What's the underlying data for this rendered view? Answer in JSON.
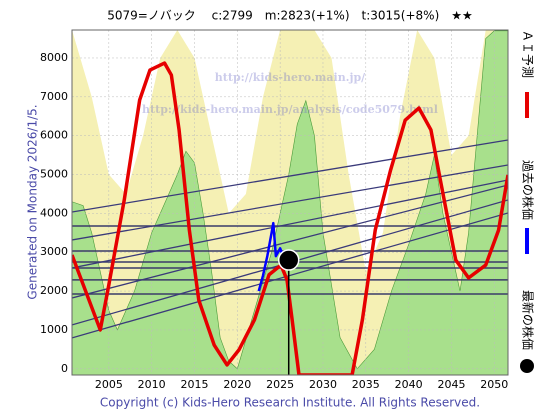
{
  "chart_data": {
    "type": "line",
    "title": "5079=ノバック　 c:2799　m:2823(+1%)　t:3015(+8%)　★★",
    "side_note": "Generated on Monday 2026/1/5.",
    "footer": "Copyright (c) Kids-Hero Research Institute. All Rights Reserved.",
    "watermarks": [
      "http://kids-hero.main.jp/",
      "http://kids-hero.main.jp/analysis/code5079.html"
    ],
    "xlim": [
      2000.7,
      2051.6
    ],
    "xticks": [
      2005,
      2010,
      2015,
      2020,
      2025,
      2030,
      2035,
      2040,
      2045,
      2050
    ],
    "ylim": [
      -160,
      8720
    ],
    "yticks": [
      0,
      1000,
      2000,
      3000,
      4000,
      5000,
      6000,
      7000,
      8000
    ],
    "grid": true,
    "bands": [
      {
        "color": "#f5f0b4",
        "x": [
          2000.7,
          2003,
          2005,
          2007,
          2009,
          2011,
          2013,
          2015,
          2017,
          2019,
          2021,
          2023,
          2025,
          2027,
          2029,
          2031,
          2033,
          2035,
          2037,
          2039,
          2041,
          2043,
          2045,
          2047,
          2049,
          2051.6
        ],
        "values": [
          8720,
          7000,
          5000,
          4500,
          6000,
          8000,
          8720,
          8000,
          6000,
          4000,
          4500,
          7000,
          8720,
          8720,
          8720,
          8000,
          5000,
          2500,
          3500,
          6500,
          8720,
          8000,
          5500,
          6000,
          8720,
          8720
        ]
      },
      {
        "color": "#a8e08c",
        "x": [
          2000.7,
          2002,
          2003,
          2004,
          2005,
          2006,
          2008,
          2010,
          2012,
          2013,
          2014,
          2015,
          2016,
          2017,
          2018,
          2019,
          2020,
          2022,
          2024,
          2026,
          2027,
          2028,
          2029,
          2030,
          2032,
          2034,
          2036,
          2038,
          2040,
          2042,
          2043,
          2044,
          2046,
          2047,
          2048,
          2049,
          2050,
          2051.6
        ],
        "values": [
          4300,
          4200,
          3500,
          2500,
          1500,
          1000,
          2000,
          3500,
          4500,
          5000,
          5600,
          5300,
          4000,
          2500,
          800,
          200,
          0,
          1500,
          3000,
          5000,
          6300,
          6900,
          6000,
          3500,
          800,
          0,
          500,
          2000,
          3200,
          4500,
          5500,
          4000,
          2000,
          3500,
          6000,
          8500,
          8700,
          8700
        ]
      }
    ],
    "levels": [
      3676,
      3033,
      2750,
      2595,
      2287,
      1926
    ],
    "level_color": "#3a3a6a",
    "trend_lines": [
      {
        "x": [
          2000.7,
          2051.6
        ],
        "values": [
          4036,
          5889
        ]
      },
      {
        "x": [
          2000.7,
          2051.6
        ],
        "values": [
          3316,
          5246
        ]
      },
      {
        "x": [
          2000.7,
          2051.6
        ],
        "values": [
          2595,
          4860
        ]
      },
      {
        "x": [
          2000.7,
          2051.6
        ],
        "values": [
          1823,
          4731
        ]
      },
      {
        "x": [
          2000.7,
          2051.6
        ],
        "values": [
          1129,
          4345
        ]
      },
      {
        "x": [
          2000.7,
          2051.6
        ],
        "values": [
          795,
          4010
        ]
      }
    ],
    "trend_color": "#3a3a7a",
    "series": [
      {
        "name": "ＡＩ予測",
        "color": "#e60000",
        "x": [
          2000.7,
          2004,
          2005,
          2006.8,
          2008.6,
          2009.8,
          2011.5,
          2012.3,
          2013.2,
          2014.4,
          2015.5,
          2017.3,
          2018.8,
          2020.2,
          2022,
          2023.7,
          2025.1,
          2025.8,
          2026.4,
          2027.2,
          2033.4,
          2034.6,
          2036.1,
          2037.9,
          2039.6,
          2041.2,
          2042.6,
          2043.7,
          2045.5,
          2047,
          2049,
          2050.5,
          2051.6
        ],
        "values": [
          2930,
          1000,
          2160,
          4345,
          6920,
          7690,
          7870,
          7560,
          6150,
          3570,
          1770,
          610,
          100,
          490,
          1260,
          2420,
          2670,
          2290,
          1260,
          -160,
          -160,
          1260,
          3570,
          5120,
          6400,
          6710,
          6150,
          4860,
          2800,
          2340,
          2670,
          3570,
          4990
        ]
      },
      {
        "name": "過去の株価",
        "color": "#0000ff",
        "x": [
          2022.5,
          2023,
          2023.5,
          2024,
          2024.2,
          2024.5,
          2025,
          2025.5
        ],
        "values": [
          2000,
          2400,
          2900,
          3500,
          3750,
          2900,
          3100,
          2800
        ]
      }
    ],
    "latest": {
      "name": "最新の株価",
      "color": "#000000",
      "x": 2026,
      "value": 2799
    }
  }
}
